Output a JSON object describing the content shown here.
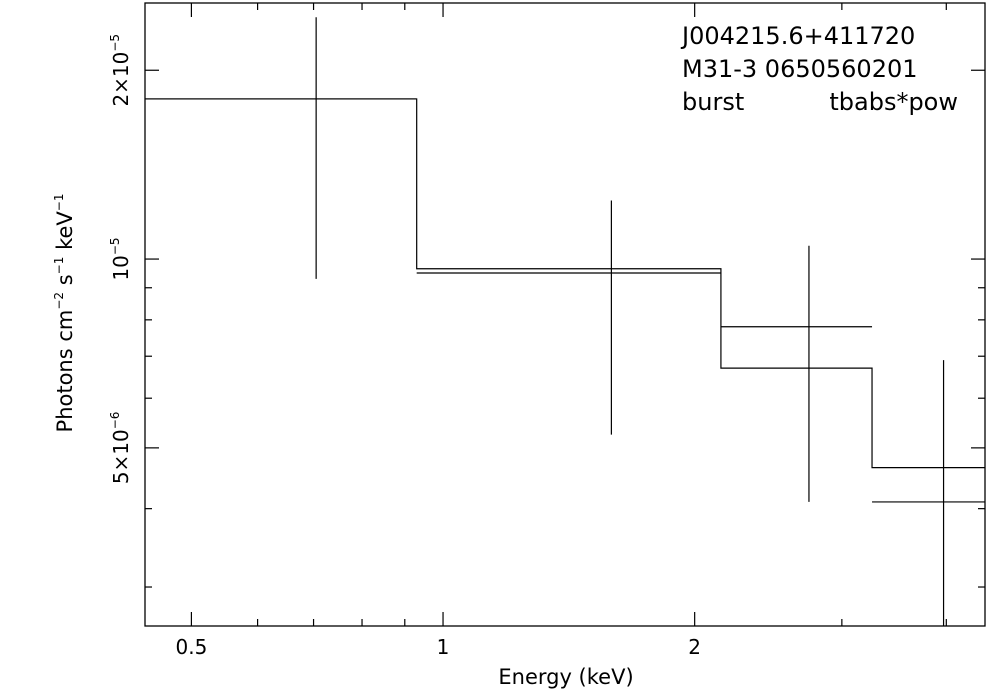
{
  "chart_data": {
    "type": "step-with-errorbars",
    "xlabel": "Energy (keV)",
    "ylabel": {
      "base": "Photons cm",
      "exp1": "−2",
      "mid": " s",
      "exp2": "−1",
      "tail": " keV",
      "exp3": "−1"
    },
    "x_scale": "log",
    "y_scale": "log",
    "xlim": [
      0.44,
      4.45
    ],
    "ylim": [
      2.6e-06,
      2.56e-05
    ],
    "x_ticks": [
      {
        "value": 0.5,
        "label": "0.5"
      },
      {
        "value": 1,
        "label": "1"
      },
      {
        "value": 2,
        "label": "2"
      }
    ],
    "x_minor_ticks": [
      0.6,
      0.7,
      0.8,
      0.9,
      3,
      4
    ],
    "y_ticks": [
      {
        "value": 5e-06,
        "mant": "5×10",
        "exp": "−6"
      },
      {
        "value": 1e-05,
        "mant": "10",
        "exp": "−5"
      },
      {
        "value": 2e-05,
        "mant": "2×10",
        "exp": "−5"
      }
    ],
    "y_minor_ticks": [
      3e-06,
      4e-06,
      6e-06,
      7e-06,
      8e-06,
      9e-06
    ],
    "annotations": {
      "line1": "J004215.6+411720",
      "line2": "M31-3 0650560201",
      "line3a": "burst",
      "line3b": "tbabs*pow"
    },
    "bins": [
      {
        "xlo": 0.44,
        "xhi": 0.93,
        "x": 0.705,
        "y": 1.8e-05,
        "ylo": 9.3e-06,
        "yhi": 2.43e-05,
        "model": 1.8e-05
      },
      {
        "xlo": 0.93,
        "xhi": 2.15,
        "x": 1.59,
        "y": 9.5e-06,
        "ylo": 5.25e-06,
        "yhi": 1.24e-05,
        "model": 9.65e-06
      },
      {
        "xlo": 2.15,
        "xhi": 3.26,
        "x": 2.74,
        "y": 7.8e-06,
        "ylo": 4.1e-06,
        "yhi": 1.05e-05,
        "model": 6.7e-06
      },
      {
        "xlo": 3.26,
        "xhi": 4.45,
        "x": 3.97,
        "y": 4.1e-06,
        "ylo": 2.6e-06,
        "yhi": 6.9e-06,
        "model": 4.65e-06
      }
    ],
    "grid": false,
    "legend": "none"
  }
}
